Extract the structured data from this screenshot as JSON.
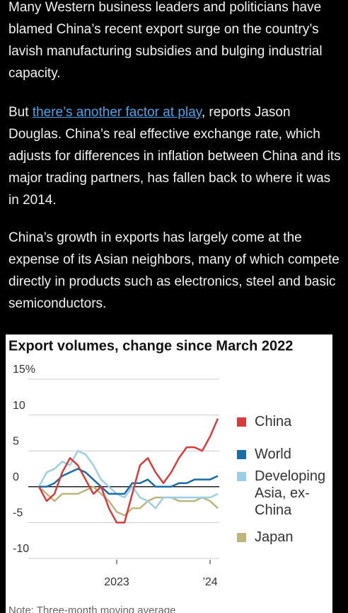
{
  "article": {
    "paragraphs": [
      {
        "text": "Many Western business leaders and politicians have blamed China’s recent export surge on the country’s lavish manufacturing subsidies and bulging industrial capacity."
      },
      {
        "before": "But ",
        "link": "there’s another factor at play",
        "after": ", reports Jason Douglas. China’s real effective exchange rate, which adjusts for differences in inflation between China and its major trading partners, has fallen back to where it was in 2014."
      },
      {
        "text": "China’s growth in exports has largely come at the expense of its Asian neighbors, many of which compete directly in products such as electronics, steel and basic semiconductors."
      }
    ]
  },
  "chart_data": {
    "type": "line",
    "title": "Export volumes, change since March 2022",
    "note": "Note: Three-month moving average",
    "categories": [
      null,
      null,
      null,
      null,
      null,
      null,
      null,
      null,
      null,
      null,
      "2023",
      null,
      null,
      null,
      null,
      null,
      null,
      null,
      null,
      null,
      null,
      null,
      "’24",
      null
    ],
    "ylim": [
      -10,
      15
    ],
    "yticks": [
      {
        "value": 15,
        "label": "15%"
      },
      10,
      5,
      0,
      -5,
      -10
    ],
    "grid": true,
    "series": [
      {
        "name": "China",
        "color": "#d93a3a",
        "values": [
          0,
          -2,
          -1,
          2,
          4,
          3,
          1,
          -1,
          0,
          -3,
          -5,
          -5,
          -1,
          3,
          4,
          2,
          0.5,
          2,
          4,
          5.5,
          5.5,
          5,
          7,
          9.5
        ]
      },
      {
        "name": "World",
        "color": "#1a6ea8",
        "values": [
          0,
          0,
          0.5,
          1.5,
          2,
          2.5,
          2,
          1,
          0,
          -1,
          -1,
          -1,
          0.5,
          0.5,
          1,
          0,
          0,
          0,
          0.5,
          0.5,
          1,
          1,
          1,
          1.5
        ]
      },
      {
        "name": "Developing Asia, ex-China",
        "color": "#9ecde8",
        "values": [
          0,
          2,
          2.5,
          3.5,
          3,
          5,
          4.5,
          3,
          1,
          0,
          -1,
          -1.5,
          0,
          -1.5,
          -2,
          -3,
          -1.5,
          -1.5,
          -1.5,
          -1.5,
          -1.5,
          -1.5,
          -1.5,
          -1
        ]
      },
      {
        "name": "Japan",
        "color": "#bcb57c",
        "values": [
          0,
          -1,
          -2,
          -1,
          -1,
          -1,
          -0.5,
          0,
          -1,
          -2,
          -3.5,
          -4,
          -3,
          -3,
          -2,
          -1.5,
          -1.5,
          -1.5,
          -2,
          -2,
          -2,
          -1.5,
          -2,
          -3
        ]
      }
    ]
  }
}
